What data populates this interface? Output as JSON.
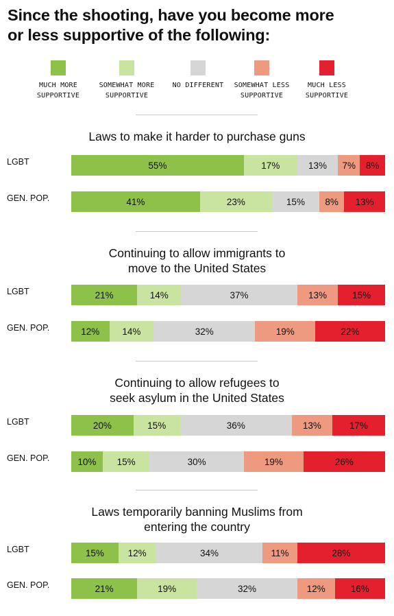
{
  "title_lines": [
    "Since the shooting, have you become more",
    "or less supportive of the following:"
  ],
  "legend": [
    {
      "lines": [
        "MUCH  MORE",
        "SUPPORTIVE"
      ],
      "color": "#8dc149"
    },
    {
      "lines": [
        "SOMEWHAT MORE",
        "SUPPORTIVE"
      ],
      "color": "#c9e3a1"
    },
    {
      "lines": [
        "NO DIFFERENT",
        ""
      ],
      "color": "#d6d6d6"
    },
    {
      "lines": [
        "SOMEWHAT LESS",
        "SUPPORTIVE"
      ],
      "color": "#ee9a80"
    },
    {
      "lines": [
        "MUCH LESS",
        "SUPPORTIVE"
      ],
      "color": "#e4202f"
    }
  ],
  "chart_data": {
    "type": "bar",
    "orientation": "horizontal",
    "stacked": true,
    "normalized": true,
    "categories": [
      "Much more supportive",
      "Somewhat more supportive",
      "No different",
      "Somewhat less supportive",
      "Much less supportive"
    ],
    "colors": [
      "#8dc149",
      "#c9e3a1",
      "#d6d6d6",
      "#ee9a80",
      "#e4202f"
    ],
    "groups": [
      {
        "title_lines": [
          "Laws to make it harder to purchase guns"
        ],
        "rows": [
          {
            "label": "LGBT",
            "values": [
              55,
              17,
              13,
              7,
              8
            ],
            "value_labels": [
              "55%",
              "17%",
              "13%",
              "7%",
              "8%"
            ]
          },
          {
            "label": "GEN. POP.",
            "values": [
              41,
              23,
              15,
              8,
              13
            ],
            "value_labels": [
              "41%",
              "23%",
              "15%",
              "8%",
              "13%"
            ]
          }
        ]
      },
      {
        "title_lines": [
          "Continuing to allow immigrants to",
          "move to the United States"
        ],
        "rows": [
          {
            "label": "LGBT",
            "values": [
              21,
              14,
              37,
              13,
              15
            ],
            "value_labels": [
              "21%",
              "14%",
              "37%",
              "13%",
              "15%"
            ]
          },
          {
            "label": "GEN. POP.",
            "values": [
              12,
              14,
              32,
              19,
              22
            ],
            "value_labels": [
              "12%",
              "14%",
              "32%",
              "19%",
              "22%"
            ]
          }
        ]
      },
      {
        "title_lines": [
          "Continuing to allow refugees to",
          "seek asylum in the United States"
        ],
        "rows": [
          {
            "label": "LGBT",
            "values": [
              20,
              15,
              36,
              13,
              17
            ],
            "value_labels": [
              "20%",
              "15%",
              "36%",
              "13%",
              "17%"
            ]
          },
          {
            "label": "GEN. POP.",
            "values": [
              10,
              15,
              30,
              19,
              26
            ],
            "value_labels": [
              "10%",
              "15%",
              "30%",
              "19%",
              "26%"
            ]
          }
        ]
      },
      {
        "title_lines": [
          "Laws temporarily banning Muslims from",
          "entering the country"
        ],
        "rows": [
          {
            "label": "LGBT",
            "values": [
              15,
              12,
              34,
              11,
              28
            ],
            "value_labels": [
              "15%",
              "12%",
              "34%",
              "11%",
              "28%"
            ]
          },
          {
            "label": "GEN. POP.",
            "values": [
              21,
              19,
              32,
              12,
              16
            ],
            "value_labels": [
              "21%",
              "19%",
              "32%",
              "12%",
              "16%"
            ]
          }
        ]
      }
    ]
  }
}
